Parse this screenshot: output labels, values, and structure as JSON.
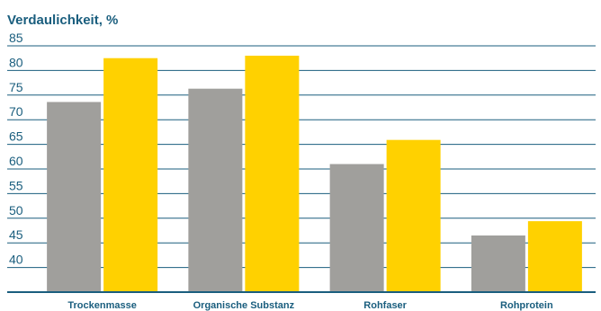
{
  "chart_data": {
    "type": "bar",
    "title": "Verdaulichkeit, %",
    "xlabel": "",
    "ylabel": "",
    "ylim": [
      35,
      85
    ],
    "yticks": [
      40,
      45,
      50,
      55,
      60,
      65,
      70,
      75,
      80,
      85
    ],
    "grid": true,
    "legend": "none",
    "categories": [
      "Trockenmasse",
      "Organische Substanz",
      "Rohfaser",
      "Rohprotein"
    ],
    "series": [
      {
        "color": "#a09f9c",
        "values": [
          73.6,
          76.3,
          61.0,
          46.5
        ]
      },
      {
        "color": "#ffd100",
        "values": [
          82.5,
          83.0,
          65.9,
          49.4
        ]
      }
    ]
  },
  "colors": {
    "title": "#1a5e7e",
    "axis_text": "#1a5e7e",
    "gridline": "#1a5e7e"
  }
}
